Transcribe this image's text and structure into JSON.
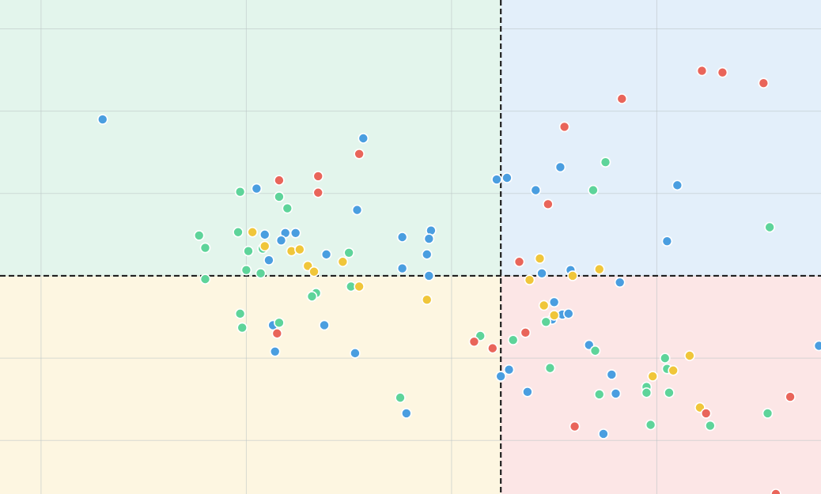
{
  "chart_data": {
    "type": "scatter",
    "title": "",
    "xlabel": "",
    "ylabel": "",
    "xlim": [
      -2.2,
      1.8
    ],
    "ylim": [
      -2.65,
      3.35
    ],
    "grid": true,
    "legend": "none",
    "quadrant_divider": {
      "x": 0.24,
      "y": 0.0
    },
    "quadrant_colors": {
      "top_left": "#e3f5ec",
      "top_right": "#e3effa",
      "bottom_left": "#fdf6e1",
      "bottom_right": "#fce6e6"
    },
    "series": [
      {
        "color": "#4a9ee0",
        "points": [
          [
            -1.7,
            1.9
          ],
          [
            -0.43,
            1.67
          ],
          [
            -0.95,
            1.06
          ],
          [
            -0.46,
            0.8
          ],
          [
            -0.81,
            0.52
          ],
          [
            -0.76,
            0.52
          ],
          [
            -0.83,
            0.43
          ],
          [
            -0.91,
            0.5
          ],
          [
            -0.89,
            0.19
          ],
          [
            -0.61,
            0.26
          ],
          [
            -0.24,
            0.47
          ],
          [
            -0.1,
            0.55
          ],
          [
            -0.12,
            0.26
          ],
          [
            -0.11,
            0.45
          ],
          [
            -0.24,
            0.09
          ],
          [
            -0.11,
            0.0
          ],
          [
            -0.87,
            -0.6
          ],
          [
            -0.62,
            -0.6
          ],
          [
            -0.86,
            -0.92
          ],
          [
            -0.47,
            -0.94
          ],
          [
            -0.22,
            -1.67
          ],
          [
            0.24,
            -1.22
          ],
          [
            0.28,
            -1.14
          ],
          [
            0.27,
            1.19
          ],
          [
            0.22,
            1.17
          ],
          [
            0.41,
            1.04
          ],
          [
            0.53,
            1.32
          ],
          [
            0.44,
            0.03
          ],
          [
            0.58,
            0.07
          ],
          [
            0.5,
            -0.32
          ],
          [
            0.49,
            -0.53
          ],
          [
            0.54,
            -0.47
          ],
          [
            0.57,
            -0.46
          ],
          [
            0.37,
            -1.41
          ],
          [
            0.67,
            -0.84
          ],
          [
            0.78,
            -1.2
          ],
          [
            0.8,
            -1.43
          ],
          [
            0.74,
            -1.92
          ],
          [
            0.82,
            -0.08
          ],
          [
            1.1,
            1.1
          ],
          [
            1.05,
            0.42
          ],
          [
            1.79,
            -0.85
          ]
        ]
      },
      {
        "color": "#5ed49a",
        "points": [
          [
            -1.03,
            1.02
          ],
          [
            -0.84,
            0.96
          ],
          [
            -0.8,
            0.82
          ],
          [
            -1.23,
            0.49
          ],
          [
            -1.2,
            0.34
          ],
          [
            -1.04,
            0.53
          ],
          [
            -0.92,
            0.33
          ],
          [
            -0.99,
            0.3
          ],
          [
            -1.0,
            0.07
          ],
          [
            -0.93,
            0.03
          ],
          [
            -1.2,
            -0.04
          ],
          [
            -0.5,
            0.28
          ],
          [
            -0.49,
            -0.13
          ],
          [
            -0.66,
            -0.21
          ],
          [
            -0.68,
            -0.25
          ],
          [
            -1.03,
            -0.46
          ],
          [
            -1.02,
            -0.63
          ],
          [
            -0.84,
            -0.57
          ],
          [
            -0.25,
            -1.48
          ],
          [
            0.14,
            -0.73
          ],
          [
            0.3,
            -0.78
          ],
          [
            0.46,
            -0.56
          ],
          [
            0.48,
            -1.12
          ],
          [
            0.7,
            -0.91
          ],
          [
            0.75,
            1.38
          ],
          [
            0.69,
            1.04
          ],
          [
            0.72,
            -1.44
          ],
          [
            0.95,
            -1.35
          ],
          [
            0.95,
            -1.42
          ],
          [
            1.04,
            -1.0
          ],
          [
            1.05,
            -1.13
          ],
          [
            1.06,
            -1.42
          ],
          [
            0.97,
            -1.81
          ],
          [
            1.26,
            -1.82
          ],
          [
            1.54,
            -1.67
          ],
          [
            1.55,
            0.59
          ]
        ]
      },
      {
        "color": "#f0c63a",
        "points": [
          [
            -0.97,
            0.53
          ],
          [
            -0.91,
            0.36
          ],
          [
            -0.78,
            0.3
          ],
          [
            -0.74,
            0.32
          ],
          [
            -0.7,
            0.12
          ],
          [
            -0.67,
            0.05
          ],
          [
            -0.53,
            0.17
          ],
          [
            -0.45,
            -0.13
          ],
          [
            -0.12,
            -0.29
          ],
          [
            0.43,
            0.21
          ],
          [
            0.38,
            -0.05
          ],
          [
            0.45,
            -0.36
          ],
          [
            0.5,
            -0.48
          ],
          [
            0.59,
            0.0
          ],
          [
            0.72,
            0.08
          ],
          [
            0.98,
            -1.22
          ],
          [
            1.08,
            -1.15
          ],
          [
            1.16,
            -0.97
          ],
          [
            1.21,
            -1.6
          ]
        ]
      },
      {
        "color": "#e9655a",
        "points": [
          [
            -0.84,
            1.16
          ],
          [
            -0.65,
            1.21
          ],
          [
            -0.65,
            1.01
          ],
          [
            -0.45,
            1.48
          ],
          [
            0.47,
            0.87
          ],
          [
            0.55,
            1.81
          ],
          [
            0.83,
            2.15
          ],
          [
            1.22,
            2.49
          ],
          [
            1.32,
            2.47
          ],
          [
            1.52,
            2.34
          ],
          [
            0.33,
            0.17
          ],
          [
            0.36,
            -0.69
          ],
          [
            0.2,
            -0.88
          ],
          [
            0.11,
            -0.8
          ],
          [
            -0.85,
            -0.7
          ],
          [
            0.6,
            -1.83
          ],
          [
            1.24,
            -1.67
          ],
          [
            1.65,
            -1.47
          ],
          [
            1.58,
            -2.65
          ]
        ]
      }
    ]
  }
}
